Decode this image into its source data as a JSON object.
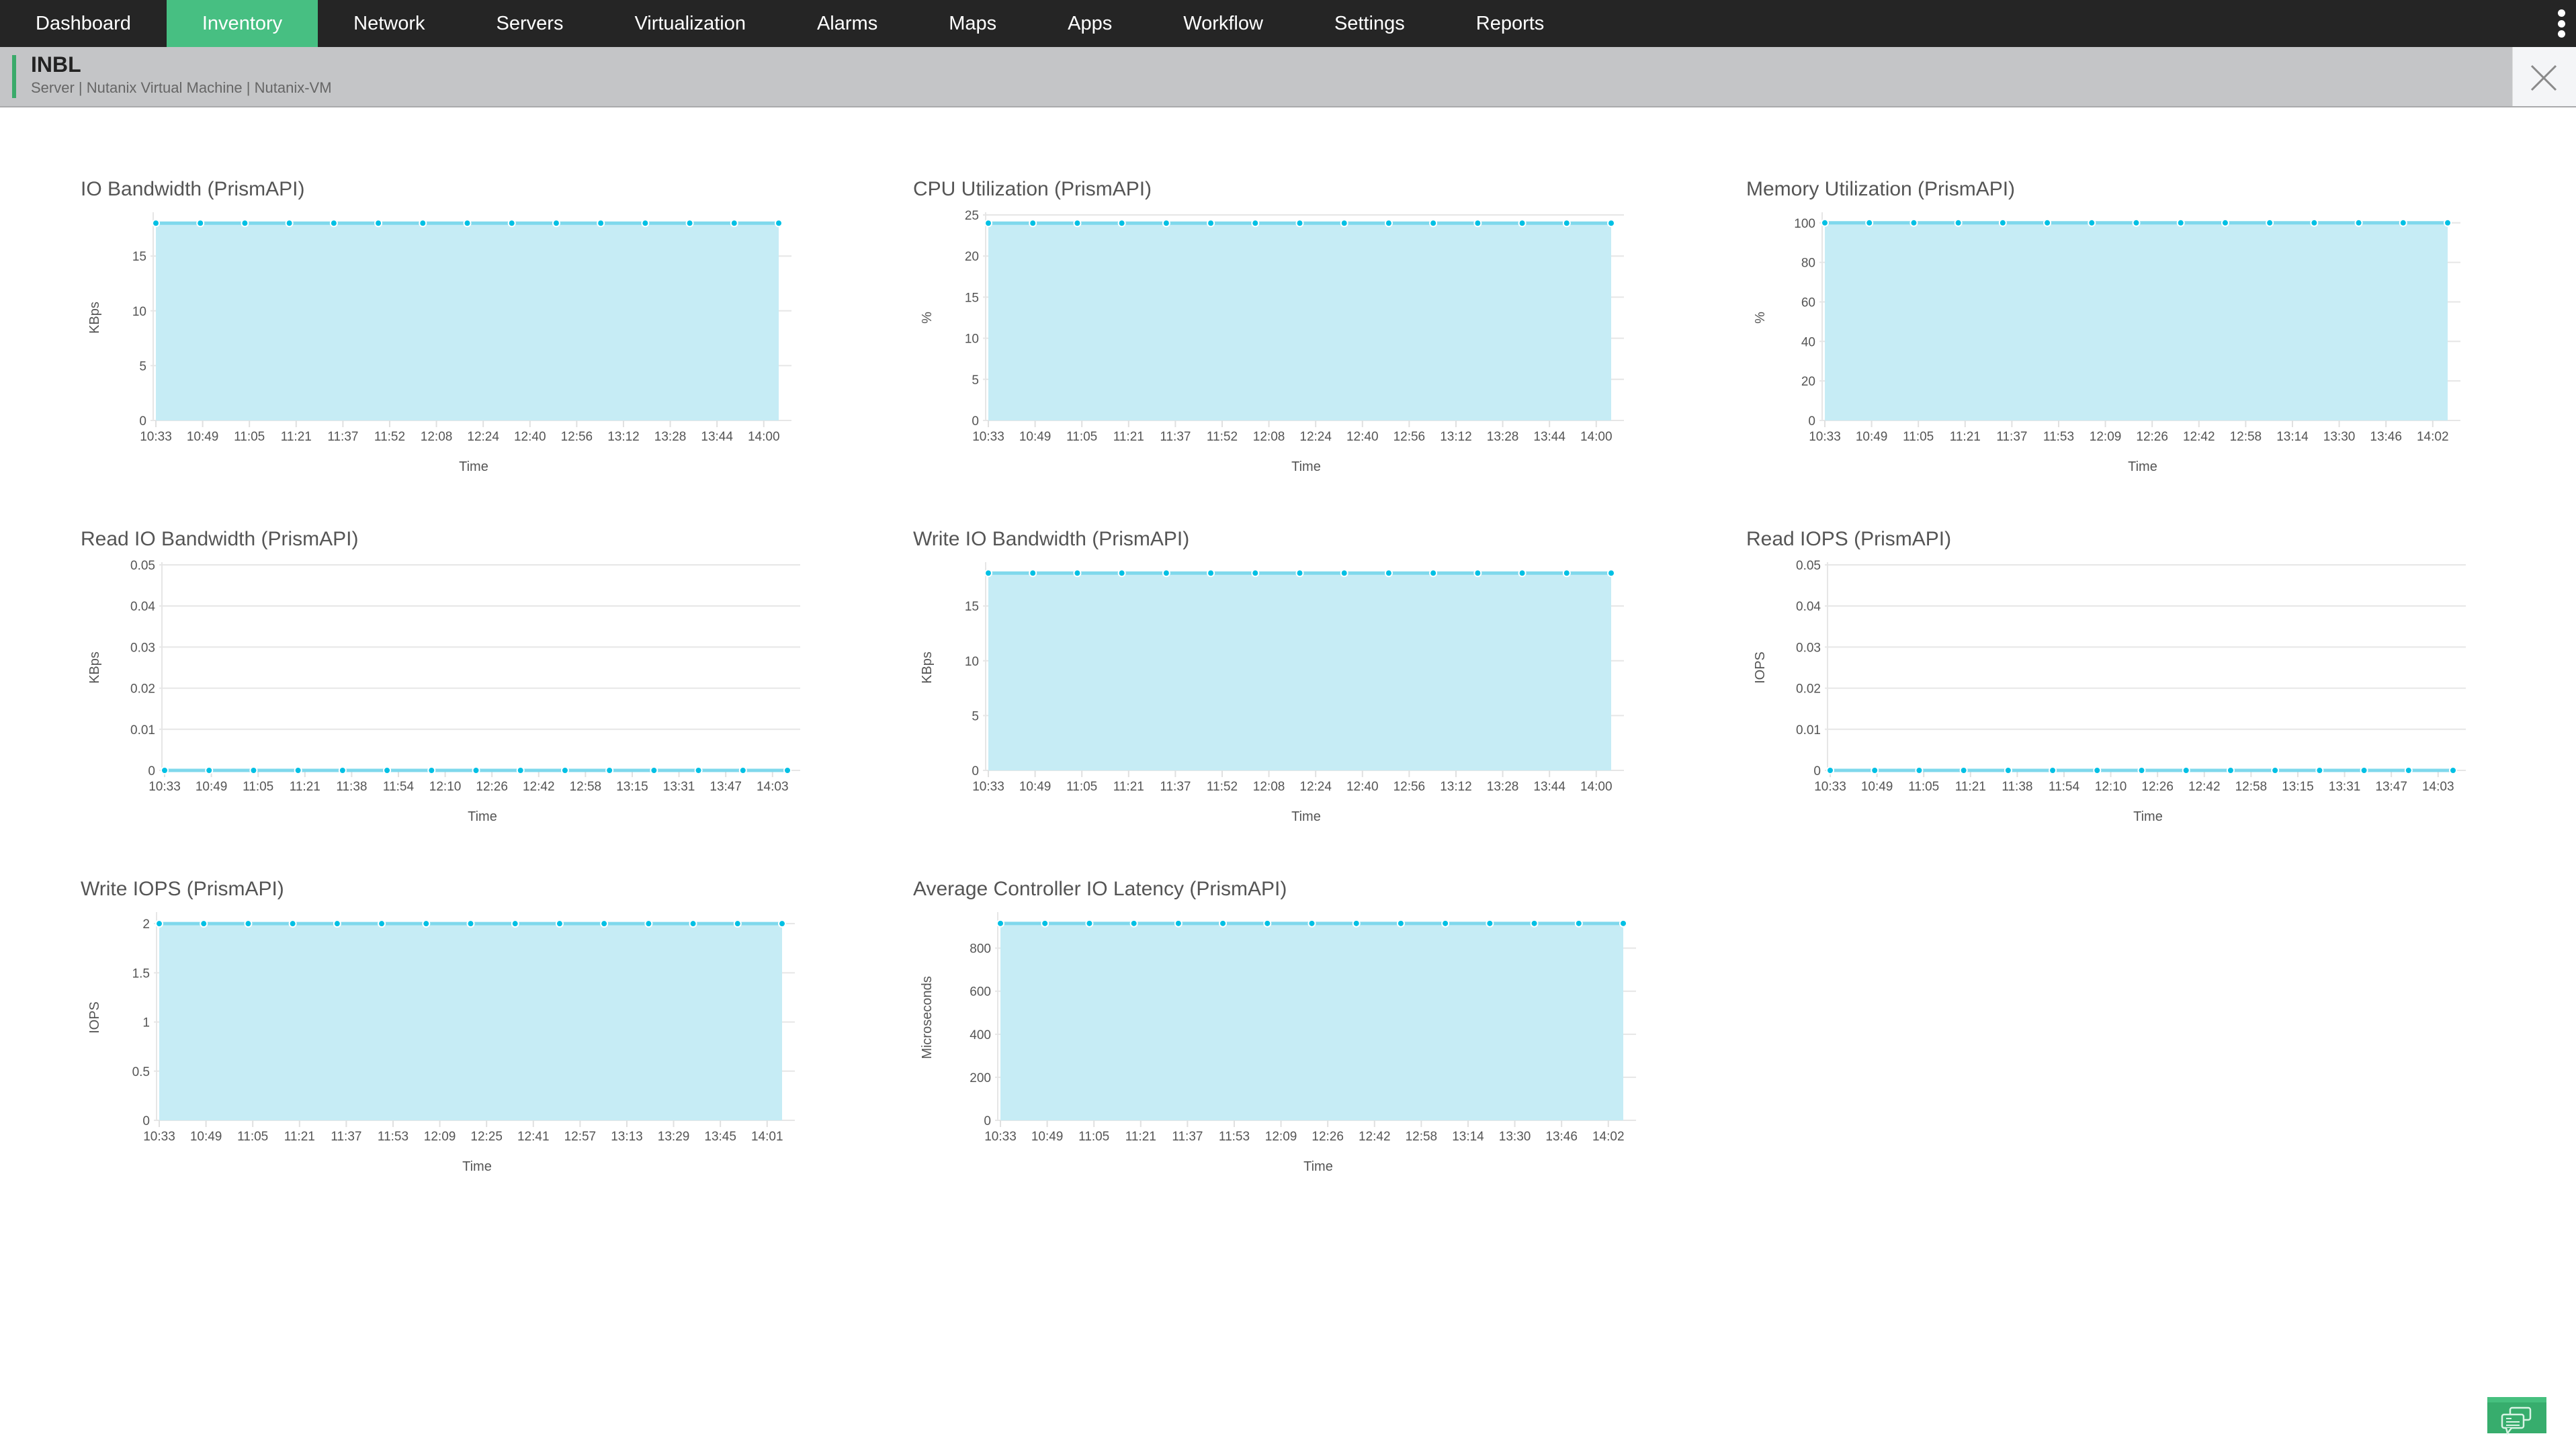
{
  "nav": {
    "items": [
      {
        "label": "Dashboard",
        "active": false
      },
      {
        "label": "Inventory",
        "active": true
      },
      {
        "label": "Network",
        "active": false
      },
      {
        "label": "Servers",
        "active": false
      },
      {
        "label": "Virtualization",
        "active": false
      },
      {
        "label": "Alarms",
        "active": false
      },
      {
        "label": "Maps",
        "active": false
      },
      {
        "label": "Apps",
        "active": false
      },
      {
        "label": "Workflow",
        "active": false
      },
      {
        "label": "Settings",
        "active": false
      },
      {
        "label": "Reports",
        "active": false
      }
    ],
    "more_icon": "kebab-menu-icon"
  },
  "header": {
    "title": "INBL",
    "subtitle": "Server | Nutanix Virtual Machine  | Nutanix-VM",
    "close_icon": "close-icon"
  },
  "colors": {
    "accent": "#47bf82",
    "fill": "#c6ecf5",
    "line": "#7fd8ec",
    "marker": "#00c0e4",
    "nav_bg": "#252525"
  },
  "chart_data": [
    {
      "type": "area",
      "title": "IO Bandwidth (PrismAPI)",
      "xlabel": "Time",
      "ylabel": "KBps",
      "ylim": [
        0,
        18.75
      ],
      "yticks": [
        "0",
        "5",
        "10",
        "15"
      ],
      "ytick_values": [
        0,
        5,
        10,
        15
      ],
      "x_labels": [
        "10:33",
        "10:49",
        "11:05",
        "11:21",
        "11:37",
        "11:52",
        "12:08",
        "12:24",
        "12:40",
        "12:56",
        "13:12",
        "13:28",
        "13:44",
        "14:00"
      ],
      "values": [
        18,
        18,
        18,
        18,
        18,
        18,
        18,
        18,
        18,
        18,
        18,
        18,
        18,
        18,
        18
      ],
      "grid": true,
      "legend": "none"
    },
    {
      "type": "area",
      "title": "CPU Utilization (PrismAPI)",
      "xlabel": "Time",
      "ylabel": "%",
      "ylim": [
        0,
        25
      ],
      "yticks": [
        "0",
        "5",
        "10",
        "15",
        "20",
        "25"
      ],
      "ytick_values": [
        0,
        5,
        10,
        15,
        20,
        25
      ],
      "x_labels": [
        "10:33",
        "10:49",
        "11:05",
        "11:21",
        "11:37",
        "11:52",
        "12:08",
        "12:24",
        "12:40",
        "12:56",
        "13:12",
        "13:28",
        "13:44",
        "14:00"
      ],
      "values": [
        24,
        24,
        24,
        24,
        24,
        24,
        24,
        24,
        24,
        24,
        24,
        24,
        24,
        24,
        24
      ],
      "grid": true,
      "legend": "none"
    },
    {
      "type": "area",
      "title": "Memory Utilization (PrismAPI)",
      "xlabel": "Time",
      "ylabel": "%",
      "ylim": [
        0,
        104
      ],
      "yticks": [
        "0",
        "20",
        "40",
        "60",
        "80",
        "100"
      ],
      "ytick_values": [
        0,
        20,
        40,
        60,
        80,
        100
      ],
      "x_labels": [
        "10:33",
        "10:49",
        "11:05",
        "11:21",
        "11:37",
        "11:53",
        "12:09",
        "12:26",
        "12:42",
        "12:58",
        "13:14",
        "13:30",
        "13:46",
        "14:02"
      ],
      "values": [
        100,
        100,
        100,
        100,
        100,
        100,
        100,
        100,
        100,
        100,
        100,
        100,
        100,
        100,
        100
      ],
      "grid": true,
      "legend": "none"
    },
    {
      "type": "area",
      "title": "Read IO Bandwidth (PrismAPI)",
      "xlabel": "Time",
      "ylabel": "KBps",
      "ylim": [
        0,
        0.05
      ],
      "yticks": [
        "0",
        "0.01",
        "0.02",
        "0.03",
        "0.04",
        "0.05"
      ],
      "ytick_values": [
        0,
        0.01,
        0.02,
        0.03,
        0.04,
        0.05
      ],
      "x_labels": [
        "10:33",
        "10:49",
        "11:05",
        "11:21",
        "11:38",
        "11:54",
        "12:10",
        "12:26",
        "12:42",
        "12:58",
        "13:15",
        "13:31",
        "13:47",
        "14:03"
      ],
      "values": [
        0,
        0,
        0,
        0,
        0,
        0,
        0,
        0,
        0,
        0,
        0,
        0,
        0,
        0,
        0
      ],
      "grid": true,
      "legend": "none"
    },
    {
      "type": "area",
      "title": "Write IO Bandwidth (PrismAPI)",
      "xlabel": "Time",
      "ylabel": "KBps",
      "ylim": [
        0,
        18.75
      ],
      "yticks": [
        "0",
        "5",
        "10",
        "15"
      ],
      "ytick_values": [
        0,
        5,
        10,
        15
      ],
      "x_labels": [
        "10:33",
        "10:49",
        "11:05",
        "11:21",
        "11:37",
        "11:52",
        "12:08",
        "12:24",
        "12:40",
        "12:56",
        "13:12",
        "13:28",
        "13:44",
        "14:00"
      ],
      "values": [
        18,
        18,
        18,
        18,
        18,
        18,
        18,
        18,
        18,
        18,
        18,
        18,
        18,
        18,
        18
      ],
      "grid": true,
      "legend": "none"
    },
    {
      "type": "area",
      "title": "Read IOPS (PrismAPI)",
      "xlabel": "Time",
      "ylabel": "IOPS",
      "ylim": [
        0,
        0.05
      ],
      "yticks": [
        "0",
        "0.01",
        "0.02",
        "0.03",
        "0.04",
        "0.05"
      ],
      "ytick_values": [
        0,
        0.01,
        0.02,
        0.03,
        0.04,
        0.05
      ],
      "x_labels": [
        "10:33",
        "10:49",
        "11:05",
        "11:21",
        "11:38",
        "11:54",
        "12:10",
        "12:26",
        "12:42",
        "12:58",
        "13:15",
        "13:31",
        "13:47",
        "14:03"
      ],
      "values": [
        0,
        0,
        0,
        0,
        0,
        0,
        0,
        0,
        0,
        0,
        0,
        0,
        0,
        0,
        0
      ],
      "grid": true,
      "legend": "none"
    },
    {
      "type": "area",
      "title": "Write IOPS (PrismAPI)",
      "xlabel": "Time",
      "ylabel": "IOPS",
      "ylim": [
        0,
        2.09
      ],
      "yticks": [
        "0",
        "0.5",
        "1",
        "1.5",
        "2"
      ],
      "ytick_values": [
        0,
        0.5,
        1,
        1.5,
        2
      ],
      "x_labels": [
        "10:33",
        "10:49",
        "11:05",
        "11:21",
        "11:37",
        "11:53",
        "12:09",
        "12:25",
        "12:41",
        "12:57",
        "13:13",
        "13:29",
        "13:45",
        "14:01"
      ],
      "values": [
        2,
        2,
        2,
        2,
        2,
        2,
        2,
        2,
        2,
        2,
        2,
        2,
        2,
        2,
        2
      ],
      "grid": true,
      "legend": "none"
    },
    {
      "type": "area",
      "title": "Average Controller IO Latency (PrismAPI)",
      "xlabel": "Time",
      "ylabel": "Microseconds",
      "ylim": [
        0,
        955
      ],
      "yticks": [
        "0",
        "200",
        "400",
        "600",
        "800"
      ],
      "ytick_values": [
        0,
        200,
        400,
        600,
        800
      ],
      "x_labels": [
        "10:33",
        "10:49",
        "11:05",
        "11:21",
        "11:37",
        "11:53",
        "12:09",
        "12:26",
        "12:42",
        "12:58",
        "13:14",
        "13:30",
        "13:46",
        "14:02"
      ],
      "values": [
        915,
        915,
        915,
        915,
        915,
        915,
        915,
        915,
        915,
        915,
        915,
        915,
        915,
        915,
        915
      ],
      "grid": true,
      "legend": "none"
    }
  ],
  "chat": {
    "icon": "chat-bubbles-icon"
  }
}
